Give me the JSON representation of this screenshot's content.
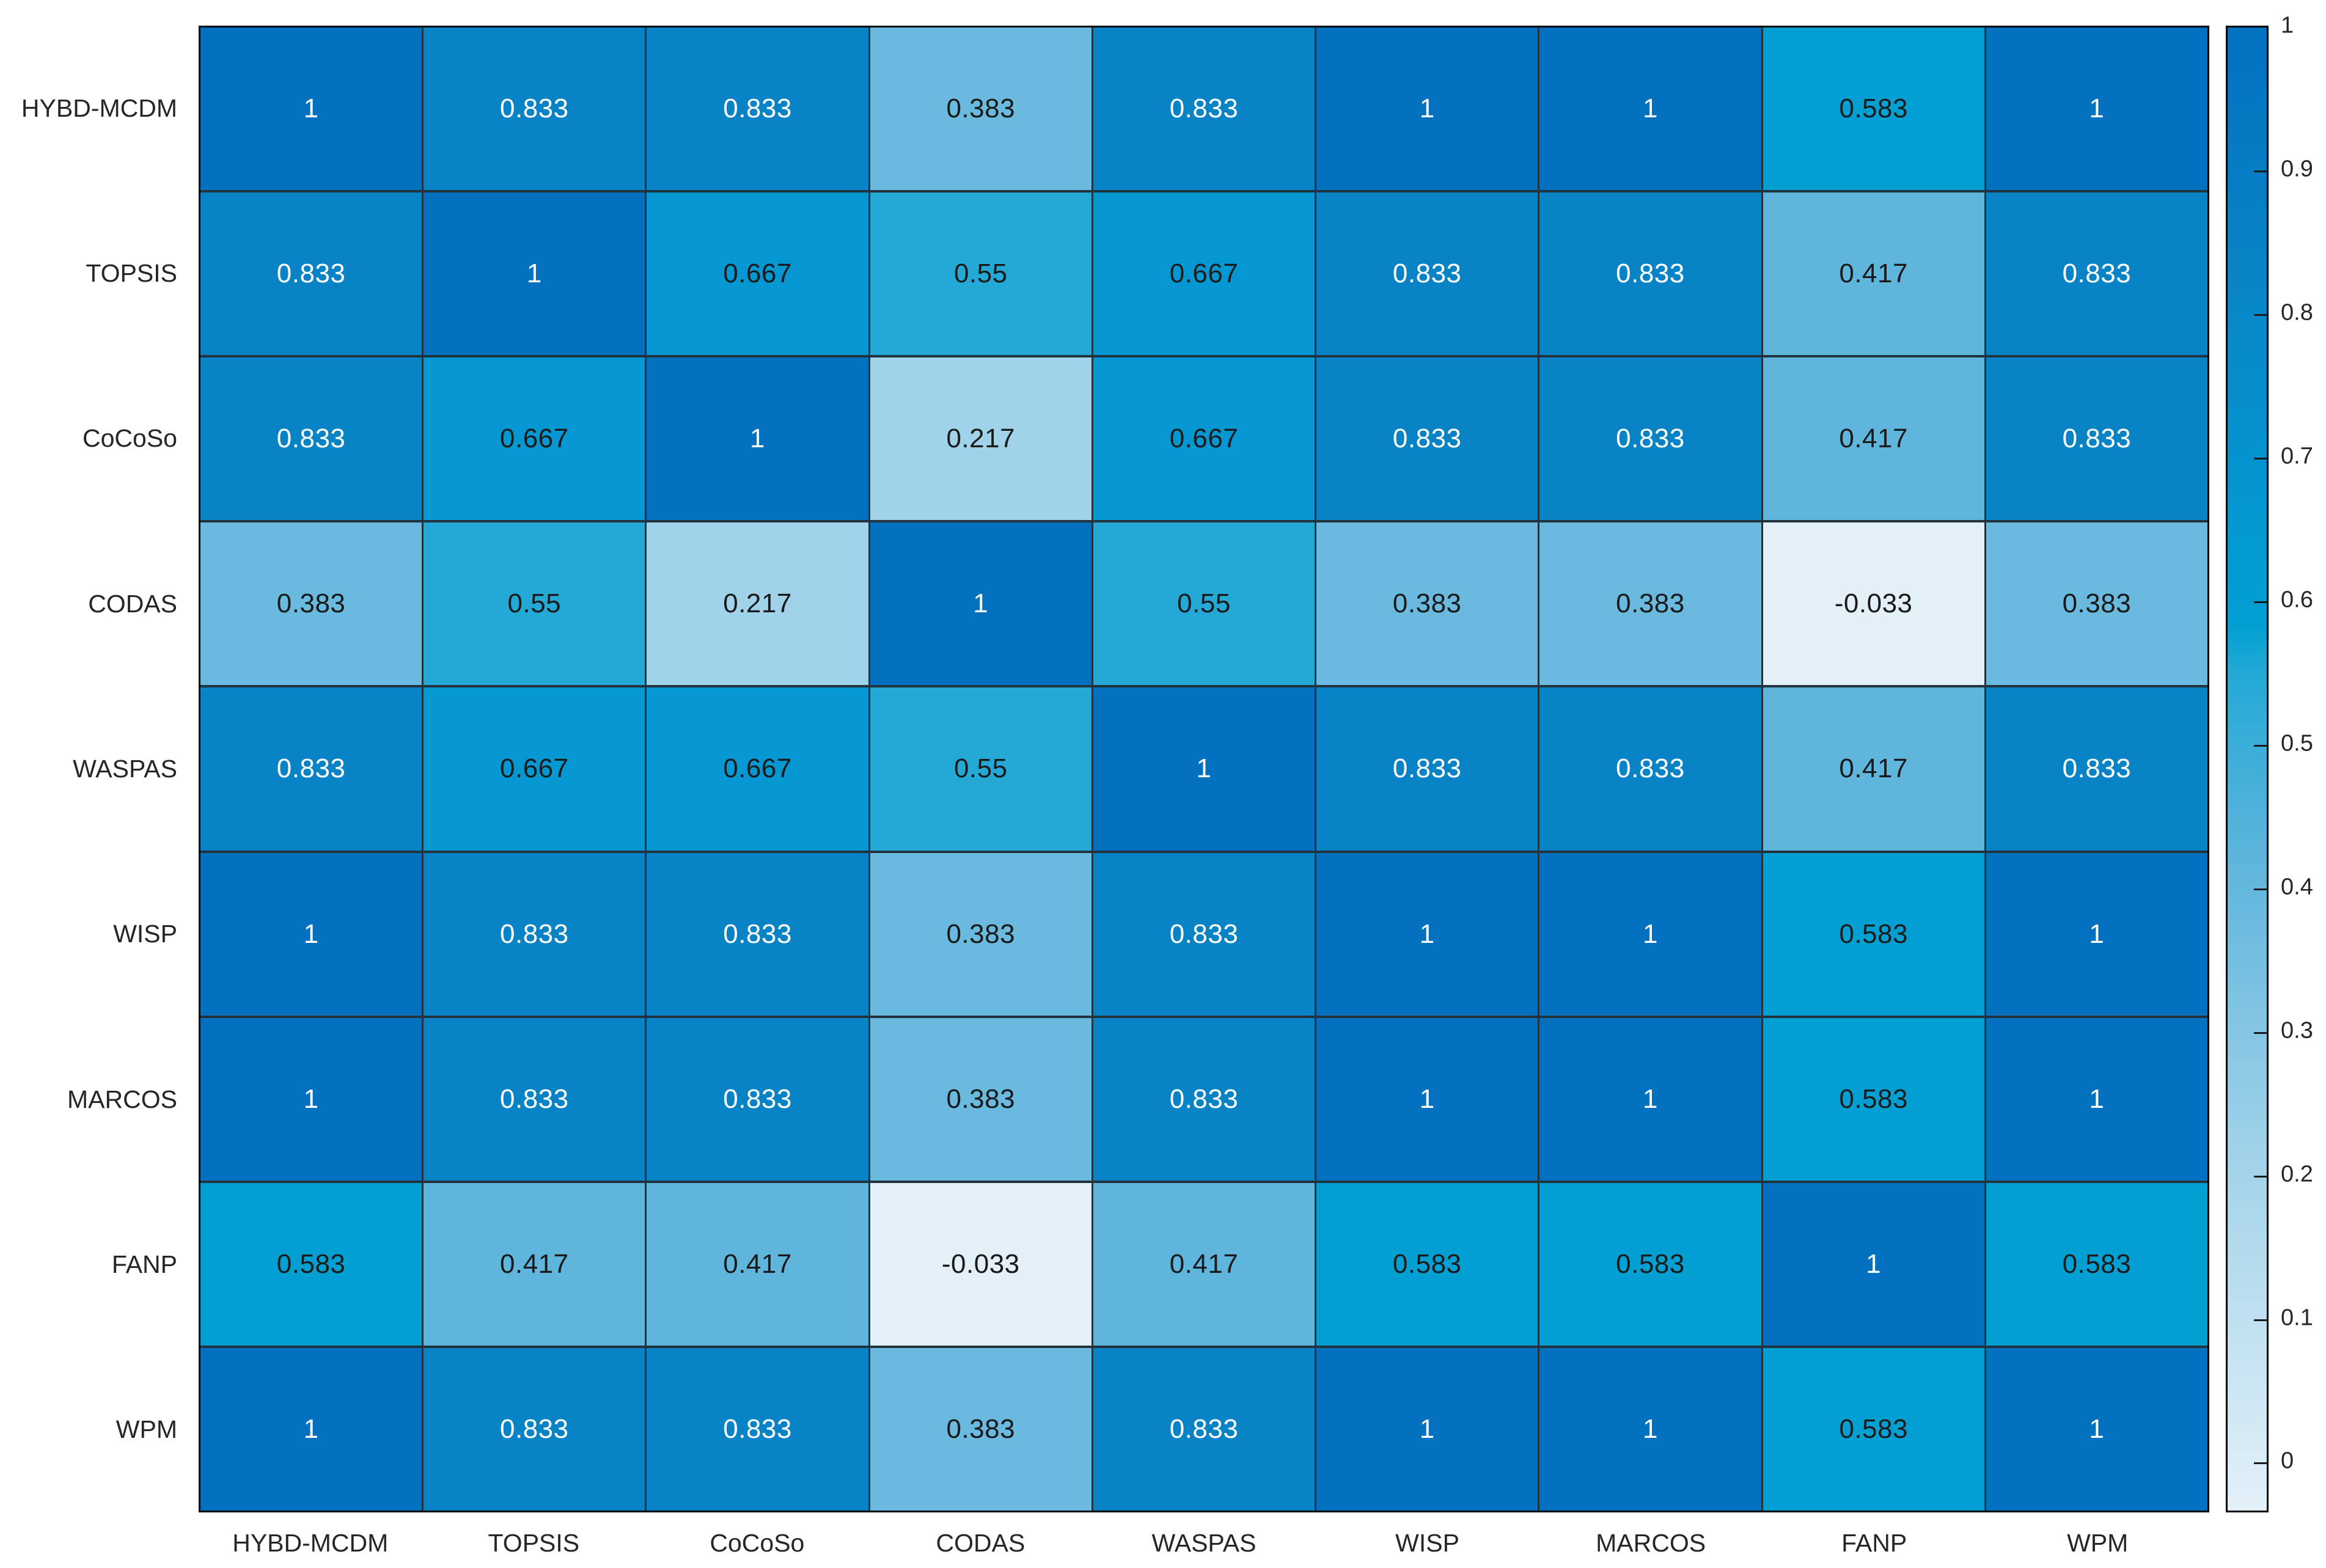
{
  "figure": {
    "background": "#ffffff",
    "label_color": "#262626",
    "grid_color": "#22333d",
    "border_color": "#000000"
  },
  "chart_data": {
    "type": "heatmap",
    "title": "",
    "xlabel": "",
    "ylabel": "",
    "categories": [
      "HYBD-MCDM",
      "TOPSIS",
      "CoCoSo",
      "CODAS",
      "WASPAS",
      "WISP",
      "MARCOS",
      "FANP",
      "WPM"
    ],
    "rows": [
      "HYBD-MCDM",
      "TOPSIS",
      "CoCoSo",
      "CODAS",
      "WASPAS",
      "WISP",
      "MARCOS",
      "FANP",
      "WPM"
    ],
    "matrix": [
      [
        1,
        0.833,
        0.833,
        0.383,
        0.833,
        1,
        1,
        0.583,
        1
      ],
      [
        0.833,
        1,
        0.667,
        0.55,
        0.667,
        0.833,
        0.833,
        0.417,
        0.833
      ],
      [
        0.833,
        0.667,
        1,
        0.217,
        0.667,
        0.833,
        0.833,
        0.417,
        0.833
      ],
      [
        0.383,
        0.55,
        0.217,
        1,
        0.55,
        0.383,
        0.383,
        -0.033,
        0.383
      ],
      [
        0.833,
        0.667,
        0.667,
        0.55,
        1,
        0.833,
        0.833,
        0.417,
        0.833
      ],
      [
        1,
        0.833,
        0.833,
        0.383,
        0.833,
        1,
        1,
        0.583,
        1
      ],
      [
        1,
        0.833,
        0.833,
        0.383,
        0.833,
        1,
        1,
        0.583,
        1
      ],
      [
        0.583,
        0.417,
        0.417,
        -0.033,
        0.417,
        0.583,
        0.583,
        1,
        0.583
      ],
      [
        1,
        0.833,
        0.833,
        0.383,
        0.833,
        1,
        1,
        0.583,
        1
      ]
    ],
    "value_colors": {
      "1": "#0371C0",
      "0.833": "#0884C6",
      "0.667": "#0497D1",
      "0.583": "#02A0D2",
      "0.55": "#24A9D6",
      "0.417": "#5FB5DC",
      "0.383": "#69BADE",
      "0.217": "#A0D2E9",
      "-0.033": "#E3F0F8"
    },
    "cell_text_colors": {
      "light": "#ffffff",
      "dark": "#1a1a1a"
    },
    "white_text_threshold": 0.75,
    "colorbar": {
      "position": "right",
      "min": -0.033,
      "max": 1,
      "tick_values": [
        1,
        0.9,
        0.8,
        0.7,
        0.6,
        0.5,
        0.4,
        0.3,
        0.2,
        0.1,
        0
      ],
      "tick_labels": [
        "1",
        "0.9",
        "0.8",
        "0.7",
        "0.6",
        "0.5",
        "0.4",
        "0.3",
        "0.2",
        "0.1",
        "0"
      ]
    },
    "legend": null,
    "grid": true
  }
}
